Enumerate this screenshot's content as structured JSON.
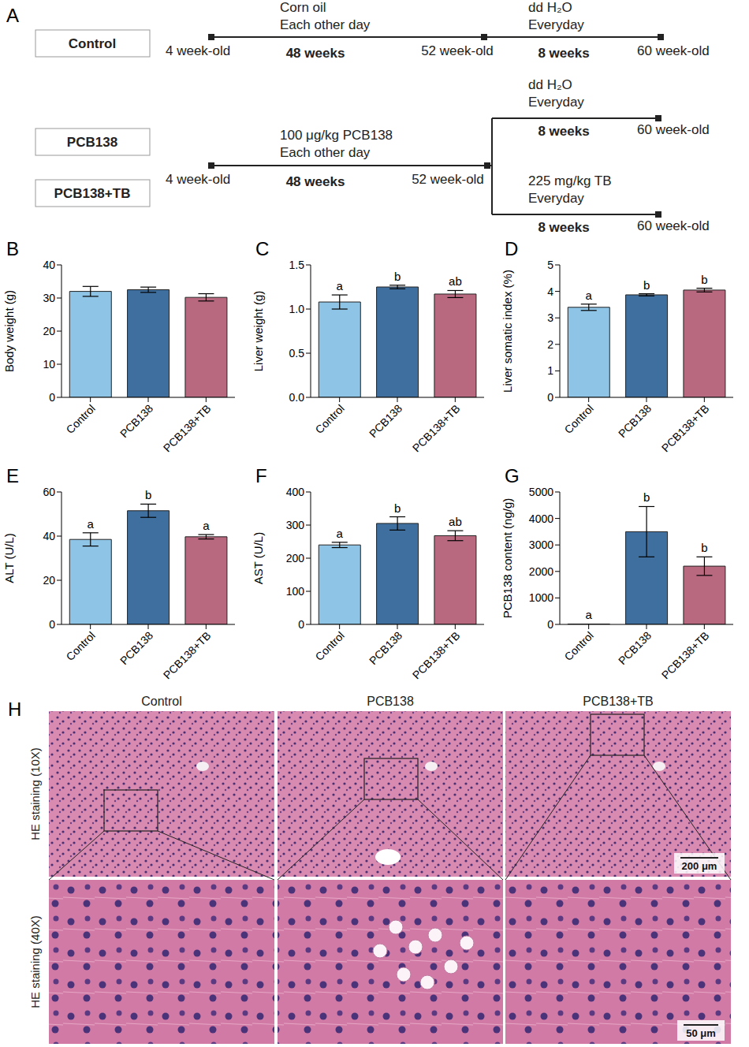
{
  "chart_data": [
    {
      "panel": "B",
      "type": "bar",
      "categories": [
        "Control",
        "PCB138",
        "PCB138+TB"
      ],
      "values": [
        32,
        32.5,
        30.2
      ],
      "errors": [
        1.5,
        0.8,
        1.1
      ],
      "colors": [
        "#8ec5e6",
        "#3f6f9f",
        "#b8687f"
      ],
      "y_label": "Body weight (g)",
      "ylim": [
        0,
        40
      ],
      "yticks": [
        0,
        10,
        20,
        30,
        40
      ]
    },
    {
      "panel": "C",
      "type": "bar",
      "categories": [
        "Control",
        "PCB138",
        "PCB138+TB"
      ],
      "values": [
        1.08,
        1.25,
        1.17
      ],
      "errors": [
        0.08,
        0.02,
        0.04
      ],
      "colors": [
        "#8ec5e6",
        "#3f6f9f",
        "#b8687f"
      ],
      "y_label": "Liver weight (g)",
      "ylim": [
        0,
        1.5
      ],
      "yticks": [
        {
          "value": 0,
          "label": "0.0"
        },
        0.5,
        {
          "value": 1,
          "label": "1.0"
        },
        1.5
      ],
      "significance_letters": [
        "a",
        "b",
        "ab"
      ]
    },
    {
      "panel": "D",
      "type": "bar",
      "categories": [
        "Control",
        "PCB138",
        "PCB138+TB"
      ],
      "values": [
        3.4,
        3.87,
        4.05
      ],
      "errors": [
        0.12,
        0.04,
        0.07
      ],
      "colors": [
        "#8ec5e6",
        "#3f6f9f",
        "#b8687f"
      ],
      "y_label": "Liver somatic index (%)",
      "ylim": [
        0,
        5
      ],
      "yticks": [
        0,
        1,
        2,
        3,
        4,
        5
      ],
      "significance_letters": [
        "a",
        "b",
        "b"
      ]
    },
    {
      "panel": "E",
      "type": "bar",
      "categories": [
        "Control",
        "PCB138",
        "PCB138+TB"
      ],
      "values": [
        38.5,
        51.5,
        39.7
      ],
      "errors": [
        3,
        3,
        1
      ],
      "colors": [
        "#8ec5e6",
        "#3f6f9f",
        "#b8687f"
      ],
      "y_label": "ALT (U/L)",
      "ylim": [
        0,
        60
      ],
      "yticks": [
        0,
        20,
        40,
        60
      ],
      "significance_letters": [
        "a",
        "b",
        "a"
      ]
    },
    {
      "panel": "F",
      "type": "bar",
      "categories": [
        "Control",
        "PCB138",
        "PCB138+TB"
      ],
      "values": [
        240,
        305,
        268
      ],
      "errors": [
        8,
        20,
        15
      ],
      "colors": [
        "#8ec5e6",
        "#3f6f9f",
        "#b8687f"
      ],
      "y_label": "AST (U/L)",
      "ylim": [
        0,
        400
      ],
      "yticks": [
        0,
        100,
        200,
        300,
        400
      ],
      "significance_letters": [
        "a",
        "b",
        "ab"
      ]
    },
    {
      "panel": "G",
      "type": "bar",
      "categories": [
        "Control",
        "PCB138",
        "PCB138+TB"
      ],
      "values": [
        15,
        3500,
        2200
      ],
      "errors": [
        0,
        950,
        350
      ],
      "colors": [
        "#8ec5e6",
        "#3f6f9f",
        "#b8687f"
      ],
      "y_label": "PCB138 content (ng/g)",
      "ylim": [
        0,
        5000
      ],
      "yticks": [
        0,
        1000,
        2000,
        3000,
        4000,
        5000
      ],
      "significance_letters": [
        "a",
        "b",
        "b"
      ]
    }
  ],
  "diagram": {
    "panel": "A",
    "control": {
      "label": "Control",
      "start": "4 week-old",
      "exposure": [
        "Corn oil",
        "Each other day"
      ],
      "exposure_duration": "48 weeks",
      "mid": "52 week-old",
      "recovery": [
        "dd H₂O",
        "Everyday"
      ],
      "recovery_duration": "8 weeks",
      "end": "60 week-old"
    },
    "treated": {
      "labels": [
        "PCB138",
        "PCB138+TB"
      ],
      "start": "4 week-old",
      "exposure": [
        "100 μg/kg PCB138",
        "Each other day"
      ],
      "exposure_duration": "48 weeks",
      "mid": "52 week-old",
      "branches": [
        {
          "treatment": [
            "dd H₂O",
            "Everyday"
          ],
          "duration": "8 weeks",
          "end": "60 week-old"
        },
        {
          "treatment": [
            "225 mg/kg TB",
            "Everyday"
          ],
          "duration": "8 weeks",
          "end": "60 week-old"
        }
      ]
    }
  },
  "histology": {
    "panel": "H",
    "columns": [
      "Control",
      "PCB138",
      "PCB138+TB"
    ],
    "rows": [
      "HE staining (10X)",
      "HE staining (40X)"
    ],
    "scale_bars": [
      "200 μm",
      "50 μm"
    ]
  }
}
